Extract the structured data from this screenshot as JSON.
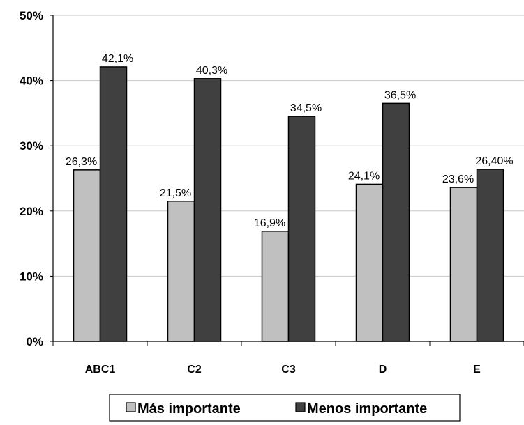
{
  "chart_data": {
    "type": "bar",
    "categories": [
      "ABC1",
      "C2",
      "C3",
      "D",
      "E"
    ],
    "series": [
      {
        "name": "Más importante",
        "values": [
          26.3,
          21.5,
          16.9,
          24.1,
          23.6
        ],
        "labels": [
          "26,3%",
          "21,5%",
          "16,9%",
          "24,1%",
          "23,6%"
        ],
        "color": "#c0c0c0"
      },
      {
        "name": "Menos importante",
        "values": [
          42.1,
          40.3,
          34.5,
          36.5,
          26.4
        ],
        "labels": [
          "42,1%",
          "40,3%",
          "34,5%",
          "36,5%",
          "26,40%"
        ],
        "color": "#404040"
      }
    ],
    "ylim": [
      0,
      50
    ],
    "yticks": [
      {
        "value": 0,
        "label": "0%"
      },
      {
        "value": 10,
        "label": "10%"
      },
      {
        "value": 20,
        "label": "20%"
      },
      {
        "value": 30,
        "label": "30%"
      },
      {
        "value": 40,
        "label": "40%"
      },
      {
        "value": 50,
        "label": "50%"
      }
    ],
    "grid": true,
    "legend_position": "bottom"
  }
}
